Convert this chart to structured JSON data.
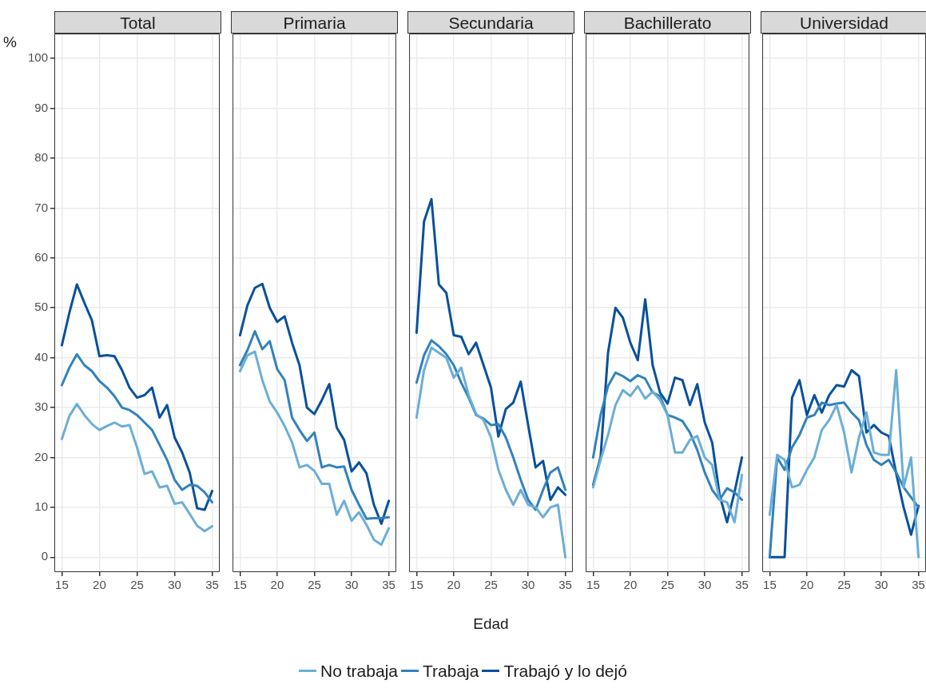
{
  "chart_data": [
    {
      "type": "line",
      "title": "Total",
      "ylabel": "%",
      "legend": "bottom",
      "grid": true,
      "x": [
        15,
        16,
        17,
        18,
        19,
        20,
        21,
        22,
        23,
        24,
        25,
        26,
        27,
        28,
        29,
        30,
        31,
        32,
        33,
        34,
        35
      ],
      "xlim": [
        14,
        36
      ],
      "ylim": [
        -3,
        105
      ],
      "xticks": [
        15,
        20,
        25,
        30,
        35
      ],
      "yticks": [
        0,
        10,
        20,
        30,
        40,
        50,
        60,
        70,
        80,
        90,
        100
      ],
      "series": [
        {
          "name": "No trabaja",
          "color": "#6baed6",
          "values": [
            23.7,
            28.3,
            30.7,
            28.5,
            26.7,
            25.5,
            26.3,
            27,
            26.2,
            26.5,
            22,
            16.7,
            17.2,
            14,
            14.3,
            10.7,
            11,
            8.7,
            6.3,
            5.2,
            6.2
          ]
        },
        {
          "name": "Trabaja",
          "color": "#3182bd",
          "values": [
            34.5,
            38,
            40.7,
            38.5,
            37.3,
            35.3,
            34,
            32.3,
            30,
            29.5,
            28.5,
            27,
            25.5,
            22.5,
            19.5,
            15.5,
            13.5,
            14.5,
            14.3,
            13,
            11
          ]
        },
        {
          "name": "Trabajó y lo dejó",
          "color": "#08519c",
          "values": [
            42.5,
            49,
            54.7,
            51,
            47.5,
            40.3,
            40.5,
            40.3,
            37.5,
            34,
            32,
            32.5,
            34,
            28,
            30.5,
            24,
            21,
            17,
            9.8,
            9.5,
            13.3
          ]
        }
      ]
    },
    {
      "type": "line",
      "title": "Primaria",
      "grid": true,
      "tick_labels": "x",
      "x": [
        15,
        16,
        17,
        18,
        19,
        20,
        21,
        22,
        23,
        24,
        25,
        26,
        27,
        28,
        29,
        30,
        31,
        32,
        33,
        34,
        35
      ],
      "xlim": [
        14,
        36
      ],
      "ylim": [
        -3,
        105
      ],
      "xticks": [
        15,
        20,
        25,
        30,
        35
      ],
      "yticks": [
        0,
        10,
        20,
        30,
        40,
        50,
        60,
        70,
        80,
        90,
        100
      ],
      "series": [
        {
          "name": "No trabaja",
          "color": "#6baed6",
          "values": [
            37.3,
            40.5,
            41.2,
            35.5,
            31.2,
            29,
            26.3,
            23,
            18,
            18.5,
            17.3,
            14.7,
            14.7,
            8.5,
            11.3,
            7.3,
            9,
            6.5,
            3.5,
            2.5,
            5.8
          ]
        },
        {
          "name": "Trabaja",
          "color": "#3182bd",
          "values": [
            38.5,
            41.5,
            45.3,
            41.7,
            43.3,
            37.7,
            35.5,
            28,
            25.5,
            23.3,
            25,
            18,
            18.5,
            18,
            18.2,
            13.5,
            10.5,
            7.7,
            7.8,
            7.8,
            8
          ]
        },
        {
          "name": "Trabajó y lo dejó",
          "color": "#08519c",
          "values": [
            44.5,
            50.5,
            54,
            54.8,
            50,
            47.2,
            48.3,
            43,
            38.5,
            30,
            28.7,
            31.5,
            34.7,
            26,
            23.5,
            17.2,
            19,
            16.8,
            10.5,
            6.7,
            11.3
          ]
        }
      ]
    },
    {
      "type": "line",
      "title": "Secundaria",
      "xlabel": "Edad",
      "grid": true,
      "tick_labels": "x",
      "x": [
        15,
        16,
        17,
        18,
        19,
        20,
        21,
        22,
        23,
        24,
        25,
        26,
        27,
        28,
        29,
        30,
        31,
        32,
        33,
        34,
        35
      ],
      "xlim": [
        14,
        36
      ],
      "ylim": [
        -3,
        105
      ],
      "xticks": [
        15,
        20,
        25,
        30,
        35
      ],
      "yticks": [
        0,
        10,
        20,
        30,
        40,
        50,
        60,
        70,
        80,
        90,
        100
      ],
      "series": [
        {
          "name": "No trabaja",
          "color": "#6baed6",
          "values": [
            28,
            37.5,
            42,
            41,
            40,
            36,
            38,
            32.5,
            28.7,
            27.5,
            24,
            17.5,
            13.5,
            10.5,
            13.5,
            10.5,
            10,
            8,
            10,
            10.5,
            0
          ]
        },
        {
          "name": "Trabaja",
          "color": "#3182bd",
          "values": [
            35,
            40.5,
            43.5,
            42.3,
            40.7,
            38.5,
            35,
            32,
            28.5,
            27.8,
            26.5,
            26.7,
            24,
            20,
            15.5,
            11.5,
            9.5,
            13.5,
            17,
            18,
            13.5
          ]
        },
        {
          "name": "Trabajó y lo dejó",
          "color": "#08519c",
          "values": [
            45,
            67.3,
            71.8,
            54.7,
            53,
            44.5,
            44.2,
            40.7,
            43,
            38.5,
            34,
            24.2,
            29.7,
            31,
            35.2,
            26.5,
            18,
            19.3,
            11.5,
            14,
            12.5
          ]
        }
      ]
    },
    {
      "type": "line",
      "title": "Bachillerato",
      "grid": true,
      "tick_labels": "x",
      "x": [
        15,
        16,
        17,
        18,
        19,
        20,
        21,
        22,
        23,
        24,
        25,
        26,
        27,
        28,
        29,
        30,
        31,
        32,
        33,
        34,
        35
      ],
      "xlim": [
        14,
        36
      ],
      "ylim": [
        -3,
        105
      ],
      "xticks": [
        15,
        20,
        25,
        30,
        35
      ],
      "yticks": [
        0,
        10,
        20,
        30,
        40,
        50,
        60,
        70,
        80,
        90,
        100
      ],
      "series": [
        {
          "name": "No trabaja",
          "color": "#6baed6",
          "values": [
            14,
            19.5,
            24.5,
            30.5,
            33.5,
            32.3,
            34.3,
            31.8,
            33.2,
            31.5,
            28.5,
            21,
            21,
            23.5,
            24.3,
            20,
            18.5,
            11.5,
            11,
            7,
            16.5
          ]
        },
        {
          "name": "Trabaja",
          "color": "#3182bd",
          "values": [
            20,
            28.5,
            34.3,
            37,
            36.3,
            35.3,
            36.5,
            35.8,
            33,
            32.3,
            28.5,
            28,
            27.3,
            25,
            21.5,
            17,
            13.5,
            11.5,
            13.8,
            13,
            11.5
          ]
        },
        {
          "name": "Trabajó y lo dejó",
          "color": "#08519c",
          "values": [
            14.5,
            20,
            41,
            50,
            48,
            43,
            39.5,
            51.7,
            38.5,
            33,
            30.8,
            36,
            35.5,
            30.5,
            34.7,
            27,
            23,
            12.5,
            7,
            13,
            20
          ]
        }
      ]
    },
    {
      "type": "line",
      "title": "Universidad",
      "grid": true,
      "tick_labels": "x",
      "x": [
        15,
        16,
        17,
        18,
        19,
        20,
        21,
        22,
        23,
        24,
        25,
        26,
        27,
        28,
        29,
        30,
        31,
        32,
        33,
        34,
        35
      ],
      "xlim": [
        14,
        36
      ],
      "ylim": [
        -3,
        105
      ],
      "xticks": [
        15,
        20,
        25,
        30,
        35
      ],
      "yticks": [
        0,
        10,
        20,
        30,
        40,
        50,
        60,
        70,
        80,
        90,
        100
      ],
      "series": [
        {
          "name": "No trabaja",
          "color": "#6baed6",
          "values": [
            8.5,
            20.5,
            19.5,
            14,
            14.5,
            17.5,
            20,
            25.5,
            27.5,
            30.5,
            25,
            17,
            24,
            29,
            21,
            20.5,
            20.5,
            37.5,
            14,
            20,
            0
          ]
        },
        {
          "name": "Trabaja",
          "color": "#3182bd",
          "values": [
            0,
            20,
            17.5,
            22,
            24.5,
            28,
            28.5,
            31,
            30.5,
            30.8,
            31,
            29,
            27.5,
            22.5,
            19.5,
            18.5,
            19.5,
            17,
            14,
            12,
            10
          ]
        },
        {
          "name": "Trabajó y lo dejó",
          "color": "#08519c",
          "values": [
            0,
            0,
            0,
            32,
            35.5,
            28.5,
            32.5,
            29,
            32.5,
            34.5,
            34.2,
            37.5,
            36.3,
            25,
            26.5,
            25,
            24.3,
            16.8,
            10,
            4.5,
            10.3
          ]
        }
      ]
    }
  ]
}
